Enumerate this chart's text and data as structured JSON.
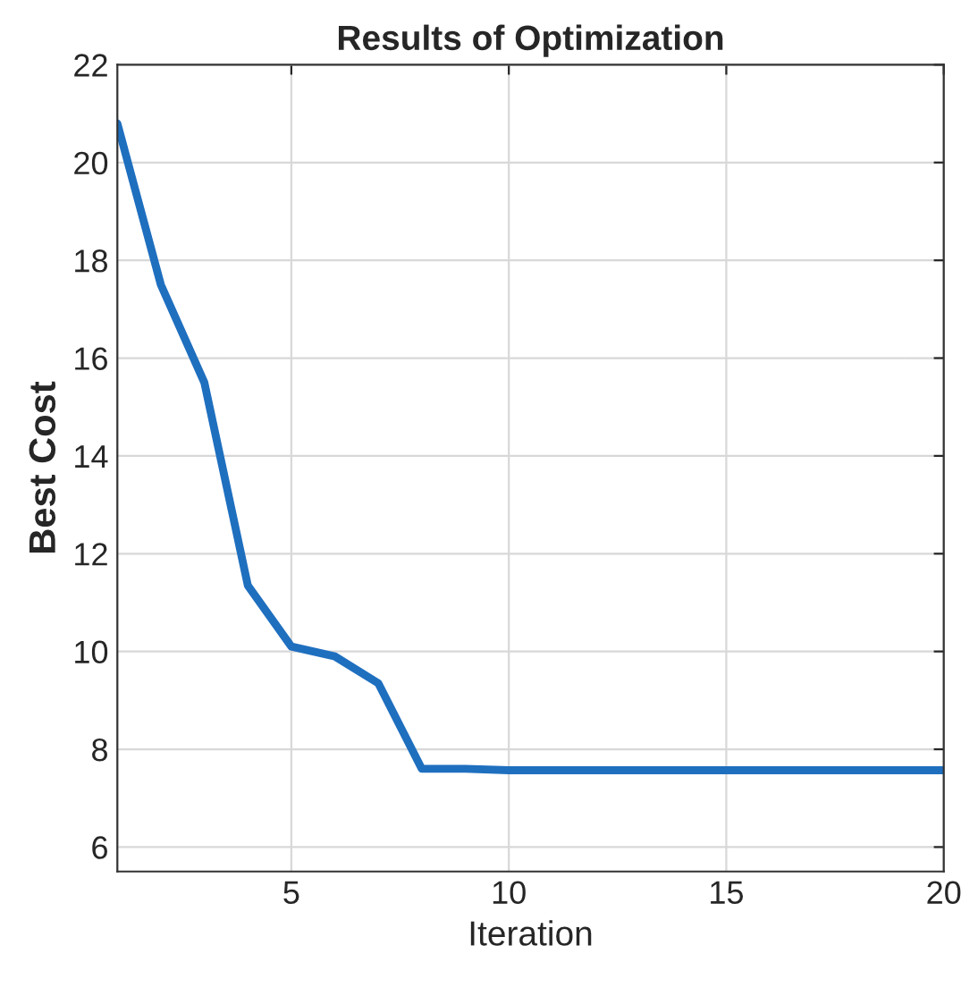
{
  "chart_data": {
    "type": "line",
    "title": "Results of Optimization",
    "xlabel": "Iteration",
    "ylabel": "Best Cost",
    "x": [
      1,
      2,
      3,
      4,
      5,
      6,
      7,
      8,
      9,
      10,
      11,
      12,
      13,
      14,
      15,
      16,
      17,
      18,
      19,
      20
    ],
    "series": [
      {
        "color": "#1f6fbf",
        "values": [
          20.8,
          17.5,
          15.5,
          11.35,
          10.1,
          9.9,
          9.35,
          7.6,
          7.6,
          7.57,
          7.57,
          7.57,
          7.57,
          7.57,
          7.57,
          7.57,
          7.57,
          7.57,
          7.57,
          7.57
        ]
      }
    ],
    "xlim": [
      1,
      20
    ],
    "xticks": [
      5,
      10,
      15,
      20
    ],
    "ylim": [
      5.5,
      22
    ],
    "yticks": [
      6,
      8,
      10,
      12,
      14,
      16,
      18,
      20,
      22
    ],
    "grid": true,
    "marker": "none",
    "line_style": "solid"
  }
}
